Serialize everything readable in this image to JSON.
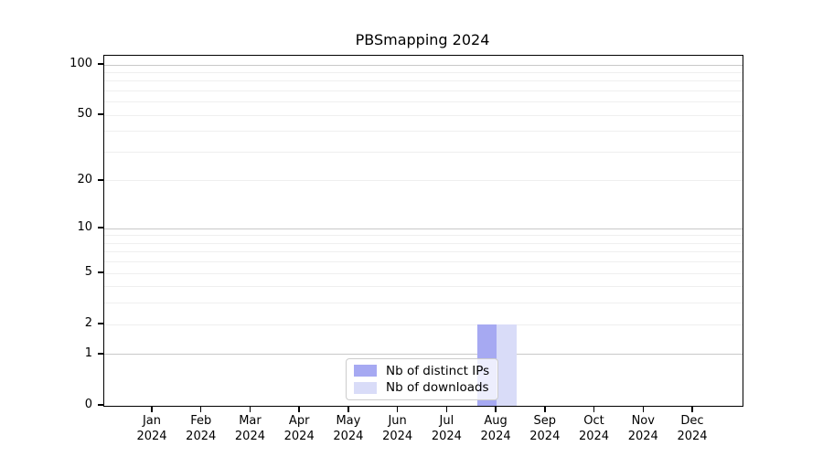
{
  "chart_data": {
    "type": "bar",
    "title": "PBSmapping 2024",
    "categories": [
      "Jan",
      "Feb",
      "Mar",
      "Apr",
      "May",
      "Jun",
      "Jul",
      "Aug",
      "Sep",
      "Oct",
      "Nov",
      "Dec"
    ],
    "year_suffix": "2024",
    "series": [
      {
        "name": "Nb of distinct IPs",
        "color": "#a6a9f2",
        "values": [
          0,
          0,
          0,
          0,
          0,
          0,
          0,
          2,
          0,
          0,
          0,
          0
        ]
      },
      {
        "name": "Nb of downloads",
        "color": "#d9dcf8",
        "values": [
          0,
          0,
          0,
          0,
          0,
          0,
          0,
          2,
          0,
          0,
          0,
          0
        ]
      }
    ],
    "y_axis": {
      "scale": "log1p",
      "ticks": [
        100,
        50,
        20,
        10,
        5,
        2,
        1,
        0
      ],
      "range": [
        0,
        113
      ]
    },
    "x_axis": {
      "label_format": "month over year"
    },
    "grid": {
      "major_lines": [
        1,
        10,
        100
      ],
      "minor_lines": [
        2,
        3,
        4,
        5,
        6,
        7,
        8,
        9,
        20,
        30,
        40,
        50,
        60,
        70,
        80,
        90
      ],
      "major_color": "#c9c9c9",
      "minor_color": "#efefef"
    },
    "legend": {
      "position": "bottom-center"
    },
    "colors": {
      "spine": "#000000",
      "text": "#000000",
      "background": "#ffffff"
    }
  }
}
